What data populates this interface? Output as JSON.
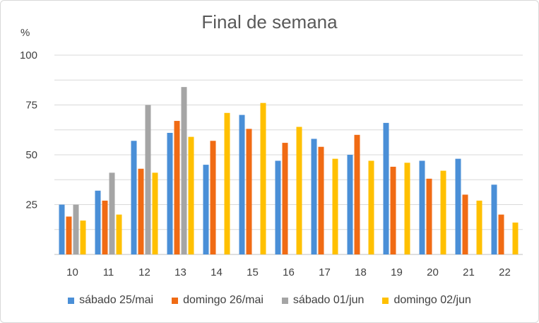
{
  "chart_data": {
    "type": "bar",
    "title": "Final de semana",
    "ylabel": "%",
    "xlabel": "",
    "ylim": [
      0,
      100
    ],
    "ytick_labels": [
      "25",
      "50",
      "75",
      "100"
    ],
    "grid": true,
    "legend_position": "bottom",
    "categories": [
      "10",
      "11",
      "12",
      "13",
      "14",
      "15",
      "16",
      "17",
      "18",
      "19",
      "20",
      "21",
      "22"
    ],
    "series": [
      {
        "name": "sábado 25/mai",
        "color": "#4a8fd7",
        "values": [
          25,
          32,
          57,
          61,
          45,
          70,
          47,
          58,
          50,
          66,
          47,
          48,
          35
        ]
      },
      {
        "name": "domingo 26/mai",
        "color": "#f06b14",
        "values": [
          19,
          27,
          43,
          67,
          57,
          63,
          56,
          54,
          60,
          44,
          38,
          30,
          20
        ]
      },
      {
        "name": "sábado 01/jun",
        "color": "#a5a5a5",
        "values": [
          25,
          41,
          75,
          84,
          null,
          null,
          null,
          null,
          null,
          null,
          null,
          null,
          null
        ]
      },
      {
        "name": "domingo 02/jun",
        "color": "#ffc000",
        "values": [
          17,
          20,
          41,
          59,
          71,
          76,
          64,
          48,
          47,
          46,
          42,
          27,
          16
        ]
      }
    ]
  }
}
